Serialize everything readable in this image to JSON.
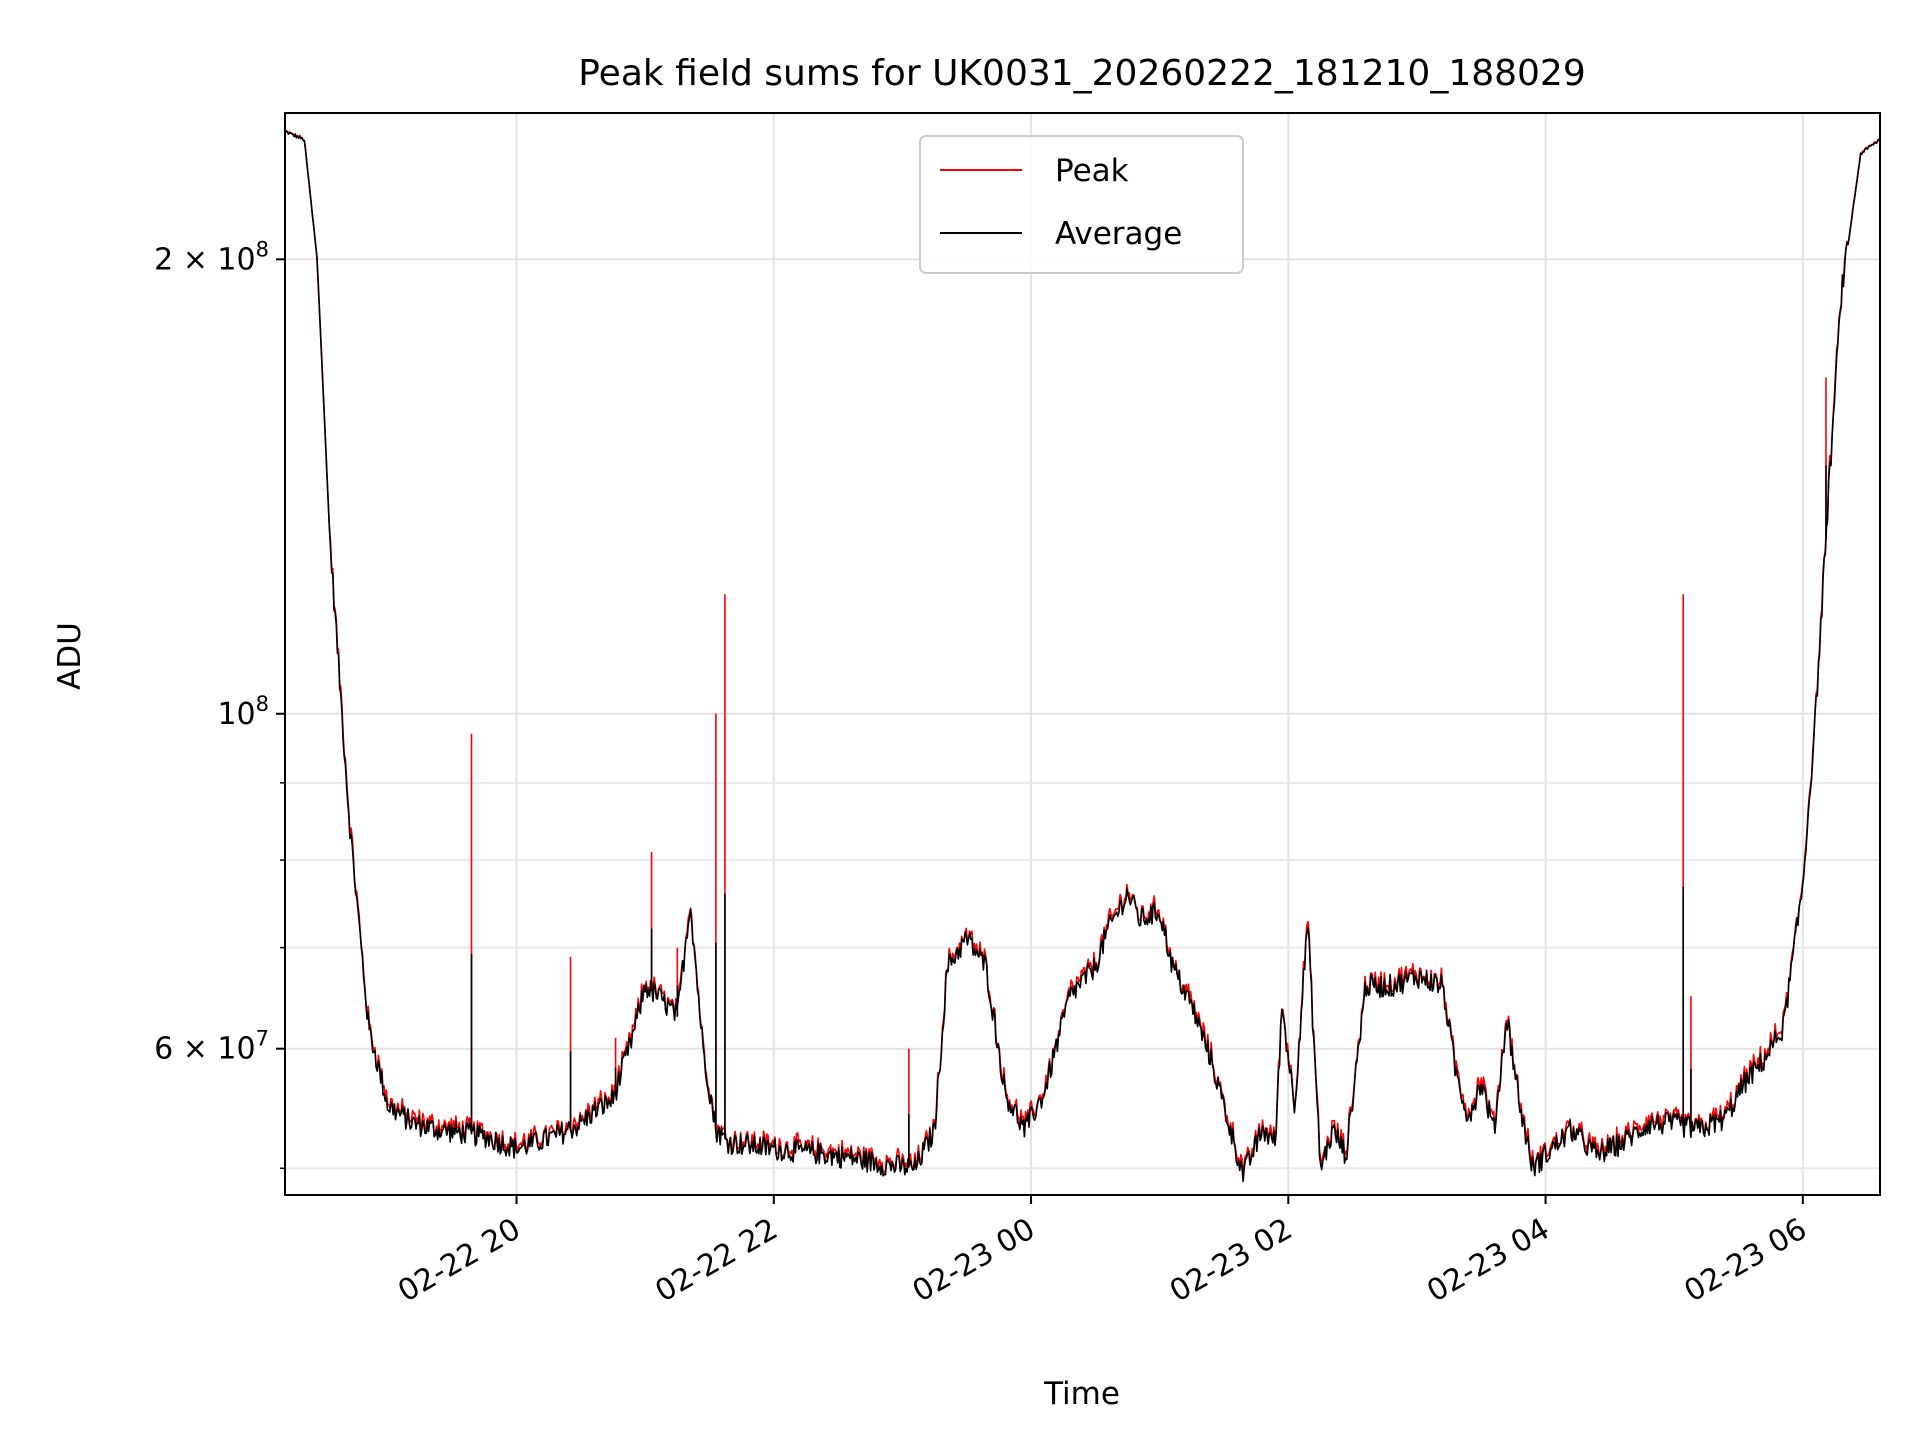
{
  "chart_data": {
    "type": "line",
    "title": "Peak field sums for UK0031_20260222_181210_188029",
    "xlabel": "Time",
    "ylabel": "ADU",
    "yscale": "log",
    "grid": true,
    "legend_position": "top-center",
    "x_range_hours": [
      18.2,
      30.6
    ],
    "ylim": [
      48000000,
      250000000
    ],
    "x_ticks": [
      {
        "value": 20,
        "label": "02-22 20"
      },
      {
        "value": 22,
        "label": "02-22 22"
      },
      {
        "value": 24,
        "label": "02-23 00"
      },
      {
        "value": 26,
        "label": "02-23 02"
      },
      {
        "value": 28,
        "label": "02-23 04"
      },
      {
        "value": 30,
        "label": "02-23 06"
      }
    ],
    "y_major_ticks": [
      {
        "value": 200000000,
        "mantissa": "2",
        "exponent": "8"
      },
      {
        "value": 100000000,
        "mantissa": "",
        "exponent": "8"
      },
      {
        "value": 60000000,
        "mantissa": "6",
        "exponent": "7"
      }
    ],
    "y_minor_ticks": [
      50000000,
      70000000,
      80000000,
      90000000
    ],
    "series": [
      {
        "name": "Peak",
        "color": "#ff0000"
      },
      {
        "name": "Average",
        "color": "#000000"
      }
    ],
    "x": [
      18.2,
      18.35,
      18.45,
      18.55,
      18.7,
      18.85,
      19.0,
      19.2,
      19.4,
      19.55,
      19.75,
      20.0,
      20.3,
      20.5,
      20.6,
      20.75,
      20.9,
      21.0,
      21.1,
      21.25,
      21.35,
      21.45,
      21.55,
      21.65,
      21.8,
      22.0,
      22.3,
      22.6,
      22.9,
      23.1,
      23.25,
      23.35,
      23.5,
      23.65,
      23.8,
      23.95,
      24.1,
      24.3,
      24.5,
      24.6,
      24.75,
      24.85,
      25.0,
      25.1,
      25.25,
      25.4,
      25.55,
      25.65,
      25.8,
      25.9,
      25.95,
      26.05,
      26.15,
      26.25,
      26.35,
      26.45,
      26.6,
      26.8,
      27.0,
      27.2,
      27.3,
      27.4,
      27.5,
      27.6,
      27.7,
      27.8,
      27.9,
      28.0,
      28.2,
      28.4,
      28.6,
      28.8,
      29.0,
      29.2,
      29.4,
      29.55,
      29.7,
      29.85,
      30.0,
      30.1,
      30.2,
      30.3,
      30.45,
      30.6
    ],
    "average": [
      243000000,
      240000000,
      200000000,
      130000000,
      85000000,
      62000000,
      55000000,
      53500000,
      53000000,
      52800000,
      52500000,
      51500000,
      52500000,
      53500000,
      54500000,
      55500000,
      61000000,
      66000000,
      65000000,
      63000000,
      75000000,
      60000000,
      53000000,
      52000000,
      51800000,
      51500000,
      51200000,
      50800000,
      50200000,
      50000000,
      53000000,
      68000000,
      71000000,
      68000000,
      56000000,
      53000000,
      56000000,
      65000000,
      68000000,
      72000000,
      76000000,
      73000000,
      74000000,
      68000000,
      64000000,
      59000000,
      53000000,
      49500000,
      53000000,
      52000000,
      64000000,
      55000000,
      73000000,
      50000000,
      53000000,
      51000000,
      66000000,
      66000000,
      67000000,
      66000000,
      58000000,
      54000000,
      57000000,
      53000000,
      63000000,
      55000000,
      50000000,
      51000000,
      53000000,
      51000000,
      52000000,
      53500000,
      53500000,
      53000000,
      54000000,
      57000000,
      59000000,
      62000000,
      77000000,
      100000000,
      140000000,
      190000000,
      235000000,
      240000000
    ],
    "peak_spikes": [
      {
        "x": 19.65,
        "y": 97000000
      },
      {
        "x": 20.42,
        "y": 69000000
      },
      {
        "x": 20.77,
        "y": 61000000
      },
      {
        "x": 21.05,
        "y": 81000000
      },
      {
        "x": 21.25,
        "y": 70000000
      },
      {
        "x": 21.55,
        "y": 100000000
      },
      {
        "x": 21.62,
        "y": 120000000
      },
      {
        "x": 23.05,
        "y": 60000000
      },
      {
        "x": 29.07,
        "y": 120000000
      },
      {
        "x": 29.13,
        "y": 65000000
      },
      {
        "x": 30.18,
        "y": 167000000
      }
    ]
  }
}
